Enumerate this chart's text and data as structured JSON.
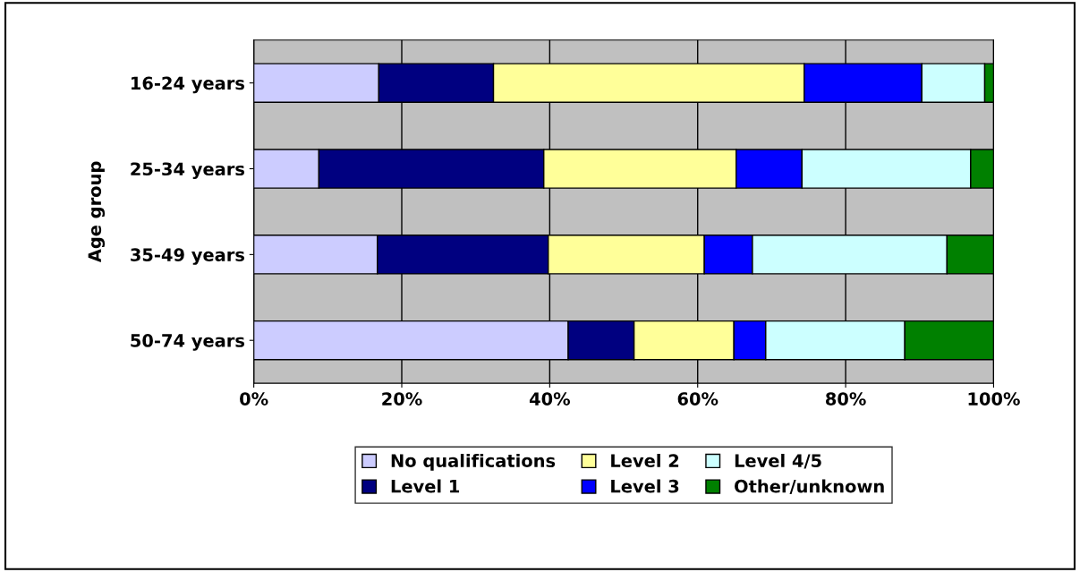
{
  "chart_data": {
    "type": "bar",
    "orientation": "horizontal",
    "stacked": true,
    "ylabel": "Age group",
    "categories": [
      "16-24 years",
      "25-34 years",
      "35-49 years",
      "50-74 years"
    ],
    "series": [
      {
        "name": "No qualifications",
        "color": "#ccccff",
        "values": [
          16.9,
          8.8,
          16.7,
          42.5
        ]
      },
      {
        "name": "Level 1",
        "color": "#000080",
        "values": [
          15.5,
          30.4,
          23.1,
          8.9
        ]
      },
      {
        "name": "Level 2",
        "color": "#ffff99",
        "values": [
          42.0,
          26.0,
          21.1,
          13.5
        ]
      },
      {
        "name": "Level 3",
        "color": "#0000ff",
        "values": [
          15.9,
          8.9,
          6.5,
          4.3
        ]
      },
      {
        "name": "Level 4/5",
        "color": "#ccffff",
        "values": [
          8.5,
          22.8,
          26.3,
          18.8
        ]
      },
      {
        "name": "Other/unknown",
        "color": "#008000",
        "values": [
          1.2,
          3.1,
          6.3,
          12.0
        ]
      }
    ],
    "xlim": [
      0,
      100
    ],
    "xticks": [
      {
        "value": 0,
        "label": "0%"
      },
      {
        "value": 20,
        "label": "20%"
      },
      {
        "value": 40,
        "label": "40%"
      },
      {
        "value": 60,
        "label": "60%"
      },
      {
        "value": 80,
        "label": "80%"
      },
      {
        "value": 100,
        "label": "100%"
      }
    ],
    "grid": "x",
    "legend": "bottom"
  }
}
